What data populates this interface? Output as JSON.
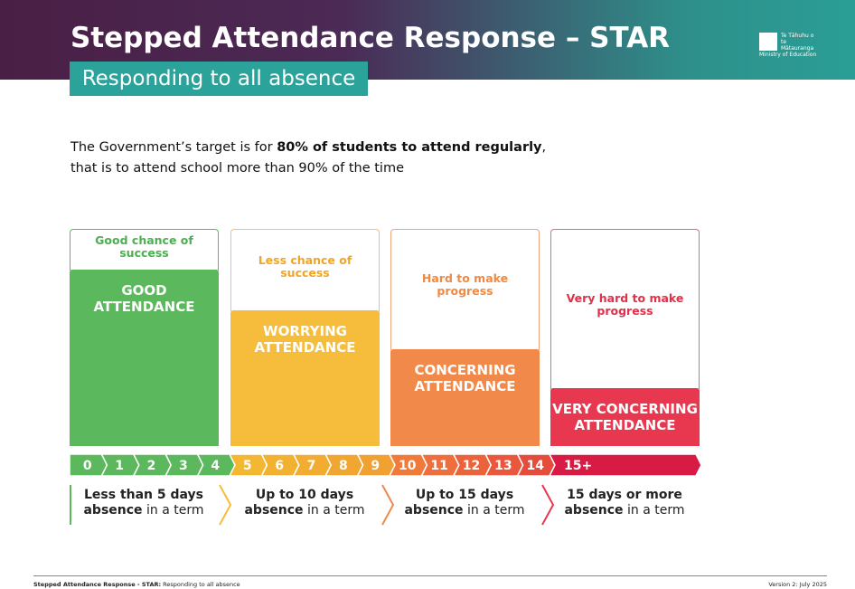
{
  "header": {
    "title": "Stepped Attendance Response –",
    "title_bold": "STAR",
    "subtitle": "Responding to all absence",
    "logo": [
      "Te Tāhuhu o",
      "te Mātauranga",
      "Ministry of Education"
    ]
  },
  "intro": {
    "part1": "The Government’s target is for",
    "bold": "80% of students to attend regularly",
    "part2": ",",
    "line2": "that is to attend school more than 90% of the time"
  },
  "levels": [
    {
      "chance": "Good chance of success",
      "label": "GOOD ATTENDANCE"
    },
    {
      "chance": "Less chance of success",
      "label": "WORRYING ATTENDANCE"
    },
    {
      "chance": "Hard to make progress",
      "label": "CONCERNING ATTENDANCE"
    },
    {
      "chance": "Very hard to make progress",
      "label": "VERY CONCERNING ATTENDANCE"
    }
  ],
  "scale": [
    "0",
    "1",
    "2",
    "3",
    "4",
    "5",
    "6",
    "7",
    "8",
    "9",
    "10",
    "11",
    "12",
    "13",
    "14",
    "15+"
  ],
  "ranges": [
    {
      "line1": "Less than 5 days",
      "bold": "absence",
      "rest": "in a term"
    },
    {
      "line1": "Up to 10 days",
      "bold": "absence",
      "rest": "in a term"
    },
    {
      "line1": "Up to 15 days",
      "bold": "absence",
      "rest": "in a term"
    },
    {
      "line1": "15 days or more",
      "bold": "absence",
      "rest": "in a term"
    }
  ],
  "footer": {
    "left_bold": "Stepped Attendance Response - STAR:",
    "left": "Responding to all absence",
    "right": "Version 2: July 2025"
  }
}
